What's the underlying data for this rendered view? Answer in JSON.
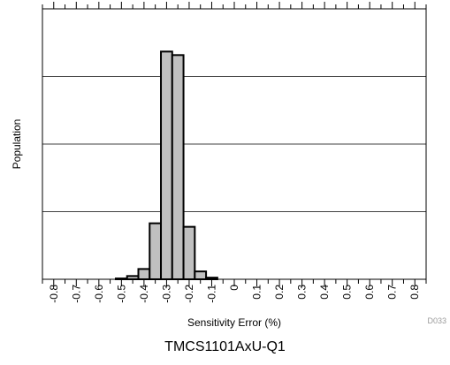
{
  "chart_data": {
    "type": "bar",
    "title": "",
    "xlabel": "Sensitivity Error (%)",
    "ylabel": "Population",
    "figure_id": "D033",
    "caption": "TMCS1101AxU-Q1",
    "xlim": [
      -0.85,
      0.85
    ],
    "ylim": [
      0,
      100
    ],
    "bin_width": 0.05,
    "x_ticks": [
      "-0.8",
      "-0.7",
      "-0.6",
      "-0.5",
      "-0.4",
      "-0.3",
      "-0.2",
      "-0.1",
      "0",
      "0.1",
      "0.2",
      "0.3",
      "0.4",
      "0.5",
      "0.6",
      "0.7",
      "0.8"
    ],
    "x_tick_values": [
      -0.8,
      -0.7,
      -0.6,
      -0.5,
      -0.4,
      -0.3,
      -0.2,
      -0.1,
      0,
      0.1,
      0.2,
      0.3,
      0.4,
      0.5,
      0.6,
      0.7,
      0.8
    ],
    "grid_y": [
      25,
      50,
      75
    ],
    "bins": [
      {
        "center": -0.5,
        "value": 0.3
      },
      {
        "center": -0.45,
        "value": 1.2
      },
      {
        "center": -0.4,
        "value": 3.8
      },
      {
        "center": -0.35,
        "value": 20.7
      },
      {
        "center": -0.3,
        "value": 84.2
      },
      {
        "center": -0.25,
        "value": 82.9
      },
      {
        "center": -0.2,
        "value": 19.4
      },
      {
        "center": -0.15,
        "value": 2.9
      },
      {
        "center": -0.1,
        "value": 0.6
      }
    ],
    "grid": true,
    "legend": "none"
  }
}
